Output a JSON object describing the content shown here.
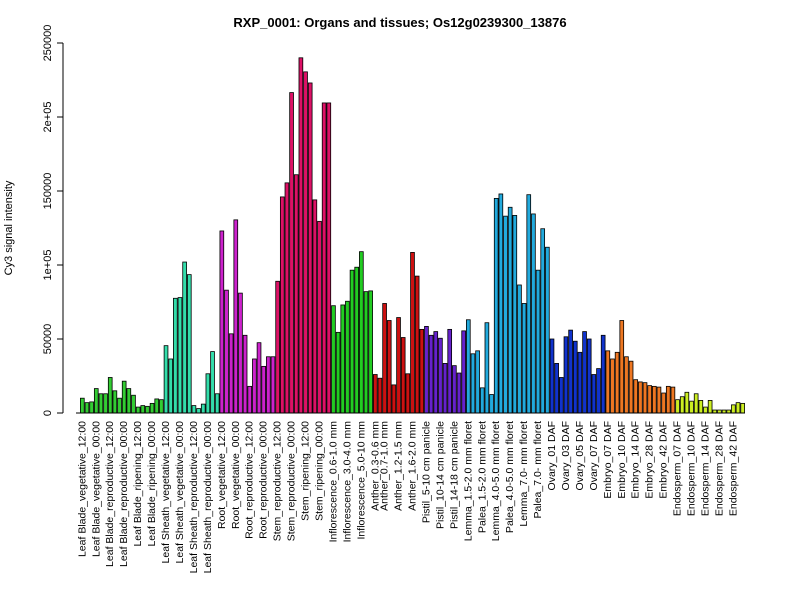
{
  "chart_data": {
    "type": "bar",
    "title": "RXP_0001: Organs and tissues; Os12g0239300_13876",
    "ylabel": "Cy3 signal intensity",
    "xlabel": "",
    "ylim": [
      0,
      250000
    ],
    "yticks": [
      0,
      50000,
      100000,
      150000,
      200000,
      250000
    ],
    "ytick_labels": [
      "0",
      "50000",
      "1e+05",
      "150000",
      "2e+05",
      "250000"
    ],
    "grid": false,
    "legend": "none",
    "groups": [
      {
        "label": "Leaf Blade_vegetative_12:00",
        "color": "#33cc33",
        "values": [
          10000,
          7000,
          7500
        ]
      },
      {
        "label": "Leaf Blade_vegetative_00:00",
        "color": "#33cc33",
        "values": [
          16500,
          13000,
          13000
        ]
      },
      {
        "label": "Leaf Blade_reproductive_12:00",
        "color": "#33cc33",
        "values": [
          24000,
          15000,
          10000
        ]
      },
      {
        "label": "Leaf Blade_reproductive_00:00",
        "color": "#33cc33",
        "values": [
          21500,
          16500,
          12000
        ]
      },
      {
        "label": "Leaf Blade_ripening_12:00",
        "color": "#33cc33",
        "values": [
          4000,
          5000,
          4500
        ]
      },
      {
        "label": "Leaf Blade_ripening_00:00",
        "color": "#33cc33",
        "values": [
          6500,
          9500,
          9000
        ]
      },
      {
        "label": "Leaf Sheath_vegetative_12:00",
        "color": "#33ddaa",
        "values": [
          45500,
          36500,
          77500
        ]
      },
      {
        "label": "Leaf Sheath_vegetative_00:00",
        "color": "#33ddaa",
        "values": [
          78000,
          102000,
          93500
        ]
      },
      {
        "label": "Leaf Sheath_reproductive_12:00",
        "color": "#33ddaa",
        "values": [
          5000,
          3000,
          6000
        ]
      },
      {
        "label": "Leaf Sheath_reproductive_00:00",
        "color": "#33ddaa",
        "values": [
          26500,
          41500,
          13000
        ]
      },
      {
        "label": "Root_vegetative_12:00",
        "color": "#cc22cc",
        "values": [
          123000,
          83000,
          53500
        ]
      },
      {
        "label": "Root_vegetative_00:00",
        "color": "#cc22cc",
        "values": [
          130500,
          81000,
          52500
        ]
      },
      {
        "label": "Root_reproductive_12:00",
        "color": "#cc22cc",
        "values": [
          18000,
          36500,
          47500
        ]
      },
      {
        "label": "Root_reproductive_00:00",
        "color": "#cc22cc",
        "values": [
          31500,
          38000,
          38000
        ]
      },
      {
        "label": "Stem_reproductive_12:00",
        "color": "#dd1166",
        "values": [
          89000,
          146000,
          155500
        ]
      },
      {
        "label": "Stem_reproductive_00:00",
        "color": "#dd1166",
        "values": [
          216500,
          161000,
          240000
        ]
      },
      {
        "label": "Stem_ripening_12:00",
        "color": "#dd1166",
        "values": [
          230500,
          223000,
          144000
        ]
      },
      {
        "label": "Stem_ripening_00:00",
        "color": "#dd1166",
        "values": [
          129500,
          209500,
          209500
        ]
      },
      {
        "label": "Inflorescence_0.6-1.0 mm",
        "color": "#22cc22",
        "values": [
          72500,
          54500,
          73000
        ]
      },
      {
        "label": "Inflorescence_3.0-4.0 mm",
        "color": "#22cc22",
        "values": [
          75500,
          96500,
          98500
        ]
      },
      {
        "label": "Inflorescence_5.0-10 mm",
        "color": "#22cc22",
        "values": [
          109000,
          82000,
          82500
        ]
      },
      {
        "label": "Anther_0.3-0.6 mm",
        "color": "#cc1111",
        "values": [
          26000,
          23500
        ]
      },
      {
        "label": "Anther_0.7-1.0 mm",
        "color": "#cc1111",
        "values": [
          74000,
          62500,
          19000
        ]
      },
      {
        "label": "Anther_1.2-1.5 mm",
        "color": "#cc1111",
        "values": [
          64500,
          51000,
          26500
        ]
      },
      {
        "label": "Anther_1.6-2.0 mm",
        "color": "#cc1111",
        "values": [
          108500,
          92500,
          56500
        ]
      },
      {
        "label": "Pistil_5-10 cm panicle",
        "color": "#6622cc",
        "values": [
          58500,
          52500,
          55000
        ]
      },
      {
        "label": "Pistil_10-14 cm panicle",
        "color": "#6622cc",
        "values": [
          50500,
          33500,
          56500
        ]
      },
      {
        "label": "Pistil_14-18 cm panicle",
        "color": "#6622cc",
        "values": [
          32000,
          27000,
          55500
        ]
      },
      {
        "label": "Lemma_1.5-2.0 mm floret",
        "color": "#22aadd",
        "values": [
          63000,
          40000,
          42000
        ]
      },
      {
        "label": "Palea_1.5-2.0 mm floret",
        "color": "#22aadd",
        "values": [
          17000,
          61000,
          12500
        ]
      },
      {
        "label": "Lemma_4.0-5.0 mm floret",
        "color": "#22aadd",
        "values": [
          145000,
          148000,
          133000
        ]
      },
      {
        "label": "Palea_4.0-5.0 mm floret",
        "color": "#22aadd",
        "values": [
          139000,
          133500,
          86500
        ]
      },
      {
        "label": "Lemma_7.0- mm floret",
        "color": "#22aadd",
        "values": [
          74000,
          147500,
          134500
        ]
      },
      {
        "label": "Palea_7.0- mm floret",
        "color": "#22aadd",
        "values": [
          96500,
          124500,
          112000
        ]
      },
      {
        "label": "Ovary_01 DAF",
        "color": "#1133cc",
        "values": [
          50000,
          33500,
          24000
        ]
      },
      {
        "label": "Ovary_03 DAF",
        "color": "#1133cc",
        "values": [
          51500,
          56000,
          48500
        ]
      },
      {
        "label": "Ovary_05 DAF",
        "color": "#1133cc",
        "values": [
          41000,
          55000,
          50000
        ]
      },
      {
        "label": "Ovary_07 DAF",
        "color": "#1133cc",
        "values": [
          26000,
          30000,
          52500
        ]
      },
      {
        "label": "Embryo_07 DAF",
        "color": "#ee7722",
        "values": [
          42000,
          36500,
          41000
        ]
      },
      {
        "label": "Embryo_10 DAF",
        "color": "#ee7722",
        "values": [
          62500,
          38000,
          35000
        ]
      },
      {
        "label": "Embryo_14 DAF",
        "color": "#ee7722",
        "values": [
          22500,
          21000,
          20500
        ]
      },
      {
        "label": "Embryo_28 DAF",
        "color": "#ee7722",
        "values": [
          18500,
          18000,
          17500
        ]
      },
      {
        "label": "Embryo_42 DAF",
        "color": "#ee7722",
        "values": [
          13500,
          18000,
          17500
        ]
      },
      {
        "label": "Endosperm_07 DAF",
        "color": "#ccee22",
        "values": [
          9000,
          11000,
          14000
        ]
      },
      {
        "label": "Endosperm_10 DAF",
        "color": "#ccee22",
        "values": [
          8000,
          13000,
          8500
        ]
      },
      {
        "label": "Endosperm_14 DAF",
        "color": "#ccee22",
        "values": [
          4000,
          8500,
          2000
        ]
      },
      {
        "label": "Endosperm_28 DAF",
        "color": "#ccee22",
        "values": [
          2000,
          2000,
          2000
        ]
      },
      {
        "label": "Endosperm_42 DAF",
        "color": "#ccee22",
        "values": [
          5500,
          7000,
          6500
        ]
      }
    ]
  }
}
